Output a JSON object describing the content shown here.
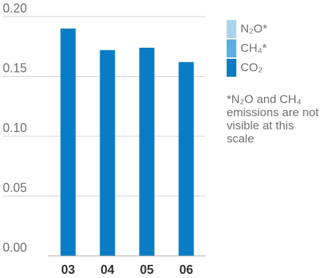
{
  "chart_data": {
    "type": "bar",
    "stacked": true,
    "categories": [
      "03",
      "04",
      "05",
      "06"
    ],
    "series": [
      {
        "name": "N₂O*",
        "values": [
          0,
          0,
          0,
          0
        ],
        "color": "#a9d4ee"
      },
      {
        "name": "CH₄*",
        "values": [
          0,
          0,
          0,
          0
        ],
        "color": "#5aaee0"
      },
      {
        "name": "CO₂",
        "values": [
          0.19,
          0.172,
          0.174,
          0.162
        ],
        "color": "#0a7cc5"
      }
    ],
    "y_ticks": [
      "0.00",
      "0.05",
      "0.10",
      "0.15",
      "0.20"
    ],
    "ylim": [
      0,
      0.2
    ],
    "grid": true,
    "legend_position": "right",
    "footnote": "*N₂O and CH₄ emissions are not visible at this scale"
  }
}
